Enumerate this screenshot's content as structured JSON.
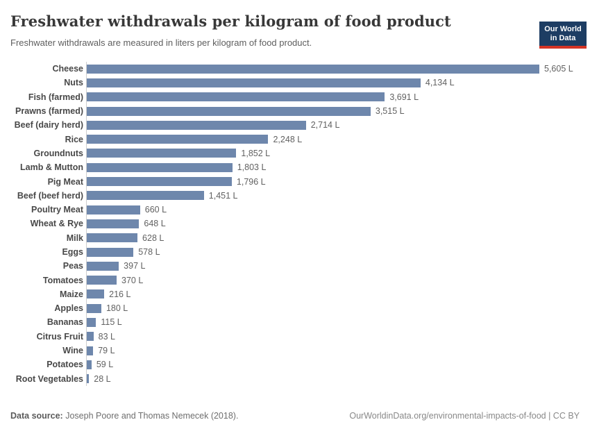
{
  "header": {
    "title": "Freshwater withdrawals per kilogram of food product",
    "subtitle": "Freshwater withdrawals are measured in liters per kilogram of food product.",
    "logo": {
      "line1": "Our World",
      "line2": "in Data",
      "background_color": "#1d3d63",
      "accent_color": "#d43425",
      "text_color": "#ffffff"
    }
  },
  "chart_data": {
    "type": "bar",
    "orientation": "horizontal",
    "title": "Freshwater withdrawals per kilogram of food product",
    "xlabel": "",
    "ylabel": "",
    "unit": "liters per kilogram",
    "xlim": [
      0,
      5605
    ],
    "grid": false,
    "bar_color": "#6e87ac",
    "categories": [
      "Cheese",
      "Nuts",
      "Fish (farmed)",
      "Prawns (farmed)",
      "Beef (dairy herd)",
      "Rice",
      "Groundnuts",
      "Lamb & Mutton",
      "Pig Meat",
      "Beef (beef herd)",
      "Poultry Meat",
      "Wheat & Rye",
      "Milk",
      "Eggs",
      "Peas",
      "Tomatoes",
      "Maize",
      "Apples",
      "Bananas",
      "Citrus Fruit",
      "Wine",
      "Potatoes",
      "Root Vegetables"
    ],
    "values": [
      5605,
      4134,
      3691,
      3515,
      2714,
      2248,
      1852,
      1803,
      1796,
      1451,
      660,
      648,
      628,
      578,
      397,
      370,
      216,
      180,
      115,
      83,
      79,
      59,
      28
    ],
    "value_labels": [
      "5,605 L",
      "4,134 L",
      "3,691 L",
      "3,515 L",
      "2,714 L",
      "2,248 L",
      "1,852 L",
      "1,803 L",
      "1,796 L",
      "1,451 L",
      "660 L",
      "648 L",
      "628 L",
      "578 L",
      "397 L",
      "370 L",
      "216 L",
      "180 L",
      "115 L",
      "83 L",
      "79 L",
      "59 L",
      "28 L"
    ]
  },
  "footer": {
    "source_label": "Data source:",
    "source_text": " Joseph Poore and Thomas Nemecek (2018).",
    "attribution": "OurWorldinData.org/environmental-impacts-of-food | CC BY"
  }
}
